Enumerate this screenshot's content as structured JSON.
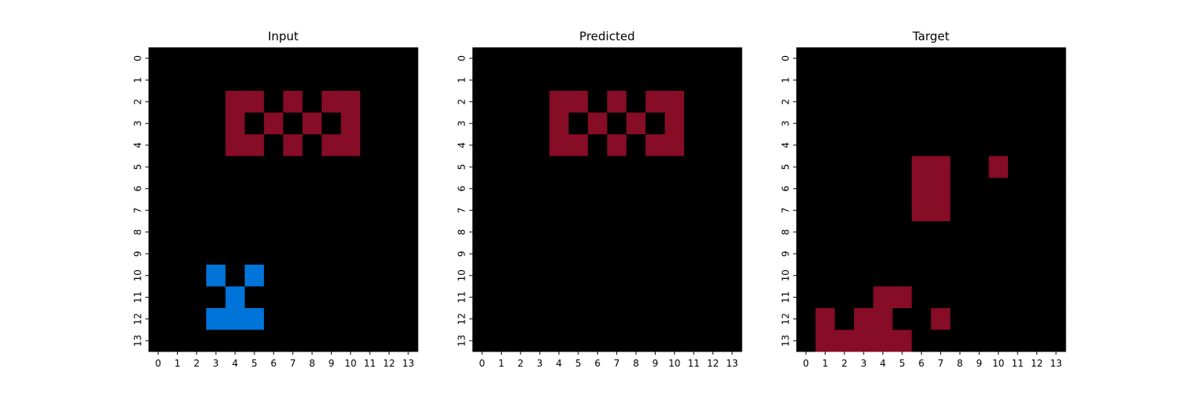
{
  "chart_data": [
    {
      "type": "heatmap",
      "title": "Input",
      "x": [
        0,
        1,
        2,
        3,
        4,
        5,
        6,
        7,
        8,
        9,
        10,
        11,
        12,
        13
      ],
      "y": [
        0,
        1,
        2,
        3,
        4,
        5,
        6,
        7,
        8,
        9,
        10,
        11,
        12,
        13
      ],
      "values": [
        [
          0,
          0,
          0,
          0,
          0,
          0,
          0,
          0,
          0,
          0,
          0,
          0,
          0,
          0
        ],
        [
          0,
          0,
          0,
          0,
          0,
          0,
          0,
          0,
          0,
          0,
          0,
          0,
          0,
          0
        ],
        [
          0,
          0,
          0,
          0,
          9,
          9,
          0,
          9,
          0,
          9,
          9,
          0,
          0,
          0
        ],
        [
          0,
          0,
          0,
          0,
          9,
          0,
          9,
          0,
          9,
          0,
          9,
          0,
          0,
          0
        ],
        [
          0,
          0,
          0,
          0,
          9,
          9,
          0,
          9,
          0,
          9,
          9,
          0,
          0,
          0
        ],
        [
          0,
          0,
          0,
          0,
          0,
          0,
          0,
          0,
          0,
          0,
          0,
          0,
          0,
          0
        ],
        [
          0,
          0,
          0,
          0,
          0,
          0,
          0,
          0,
          0,
          0,
          0,
          0,
          0,
          0
        ],
        [
          0,
          0,
          0,
          0,
          0,
          0,
          0,
          0,
          0,
          0,
          0,
          0,
          0,
          0
        ],
        [
          0,
          0,
          0,
          0,
          0,
          0,
          0,
          0,
          0,
          0,
          0,
          0,
          0,
          0
        ],
        [
          0,
          0,
          0,
          0,
          0,
          0,
          0,
          0,
          0,
          0,
          0,
          0,
          0,
          0
        ],
        [
          0,
          0,
          0,
          1,
          0,
          1,
          0,
          0,
          0,
          0,
          0,
          0,
          0,
          0
        ],
        [
          0,
          0,
          0,
          0,
          1,
          0,
          0,
          0,
          0,
          0,
          0,
          0,
          0,
          0
        ],
        [
          0,
          0,
          0,
          1,
          1,
          1,
          0,
          0,
          0,
          0,
          0,
          0,
          0,
          0
        ],
        [
          0,
          0,
          0,
          0,
          0,
          0,
          0,
          0,
          0,
          0,
          0,
          0,
          0,
          0
        ]
      ]
    },
    {
      "type": "heatmap",
      "title": "Predicted",
      "x": [
        0,
        1,
        2,
        3,
        4,
        5,
        6,
        7,
        8,
        9,
        10,
        11,
        12,
        13
      ],
      "y": [
        0,
        1,
        2,
        3,
        4,
        5,
        6,
        7,
        8,
        9,
        10,
        11,
        12,
        13
      ],
      "values": [
        [
          0,
          0,
          0,
          0,
          0,
          0,
          0,
          0,
          0,
          0,
          0,
          0,
          0,
          0
        ],
        [
          0,
          0,
          0,
          0,
          0,
          0,
          0,
          0,
          0,
          0,
          0,
          0,
          0,
          0
        ],
        [
          0,
          0,
          0,
          0,
          9,
          9,
          0,
          9,
          0,
          9,
          9,
          0,
          0,
          0
        ],
        [
          0,
          0,
          0,
          0,
          9,
          0,
          9,
          0,
          9,
          0,
          9,
          0,
          0,
          0
        ],
        [
          0,
          0,
          0,
          0,
          9,
          9,
          0,
          9,
          0,
          9,
          9,
          0,
          0,
          0
        ],
        [
          0,
          0,
          0,
          0,
          0,
          0,
          0,
          0,
          0,
          0,
          0,
          0,
          0,
          0
        ],
        [
          0,
          0,
          0,
          0,
          0,
          0,
          0,
          0,
          0,
          0,
          0,
          0,
          0,
          0
        ],
        [
          0,
          0,
          0,
          0,
          0,
          0,
          0,
          0,
          0,
          0,
          0,
          0,
          0,
          0
        ],
        [
          0,
          0,
          0,
          0,
          0,
          0,
          0,
          0,
          0,
          0,
          0,
          0,
          0,
          0
        ],
        [
          0,
          0,
          0,
          0,
          0,
          0,
          0,
          0,
          0,
          0,
          0,
          0,
          0,
          0
        ],
        [
          0,
          0,
          0,
          0,
          0,
          0,
          0,
          0,
          0,
          0,
          0,
          0,
          0,
          0
        ],
        [
          0,
          0,
          0,
          0,
          0,
          0,
          0,
          0,
          0,
          0,
          0,
          0,
          0,
          0
        ],
        [
          0,
          0,
          0,
          0,
          0,
          0,
          0,
          0,
          0,
          0,
          0,
          0,
          0,
          0
        ],
        [
          0,
          0,
          0,
          0,
          0,
          0,
          0,
          0,
          0,
          0,
          0,
          0,
          0,
          0
        ]
      ]
    },
    {
      "type": "heatmap",
      "title": "Target",
      "x": [
        0,
        1,
        2,
        3,
        4,
        5,
        6,
        7,
        8,
        9,
        10,
        11,
        12,
        13
      ],
      "y": [
        0,
        1,
        2,
        3,
        4,
        5,
        6,
        7,
        8,
        9,
        10,
        11,
        12,
        13
      ],
      "values": [
        [
          0,
          0,
          0,
          0,
          0,
          0,
          0,
          0,
          0,
          0,
          0,
          0,
          0,
          0
        ],
        [
          0,
          0,
          0,
          0,
          0,
          0,
          0,
          0,
          0,
          0,
          0,
          0,
          0,
          0
        ],
        [
          0,
          0,
          0,
          0,
          0,
          0,
          0,
          0,
          0,
          0,
          0,
          0,
          0,
          0
        ],
        [
          0,
          0,
          0,
          0,
          0,
          0,
          0,
          0,
          0,
          0,
          0,
          0,
          0,
          0
        ],
        [
          0,
          0,
          0,
          0,
          0,
          0,
          0,
          0,
          0,
          0,
          0,
          0,
          0,
          0
        ],
        [
          0,
          0,
          0,
          0,
          0,
          0,
          9,
          9,
          0,
          0,
          9,
          0,
          0,
          0
        ],
        [
          0,
          0,
          0,
          0,
          0,
          0,
          9,
          9,
          0,
          0,
          0,
          0,
          0,
          0
        ],
        [
          0,
          0,
          0,
          0,
          0,
          0,
          9,
          9,
          0,
          0,
          0,
          0,
          0,
          0
        ],
        [
          0,
          0,
          0,
          0,
          0,
          0,
          0,
          0,
          0,
          0,
          0,
          0,
          0,
          0
        ],
        [
          0,
          0,
          0,
          0,
          0,
          0,
          0,
          0,
          0,
          0,
          0,
          0,
          0,
          0
        ],
        [
          0,
          0,
          0,
          0,
          0,
          0,
          0,
          0,
          0,
          0,
          0,
          0,
          0,
          0
        ],
        [
          0,
          0,
          0,
          0,
          9,
          9,
          0,
          0,
          0,
          0,
          0,
          0,
          0,
          0
        ],
        [
          0,
          9,
          0,
          9,
          9,
          0,
          0,
          9,
          0,
          0,
          0,
          0,
          0,
          0
        ],
        [
          0,
          9,
          9,
          9,
          9,
          9,
          0,
          0,
          0,
          0,
          0,
          0,
          0,
          0
        ]
      ]
    }
  ],
  "colors": {
    "0": "#000000",
    "1": "#0074D9",
    "9": "#870C25"
  }
}
